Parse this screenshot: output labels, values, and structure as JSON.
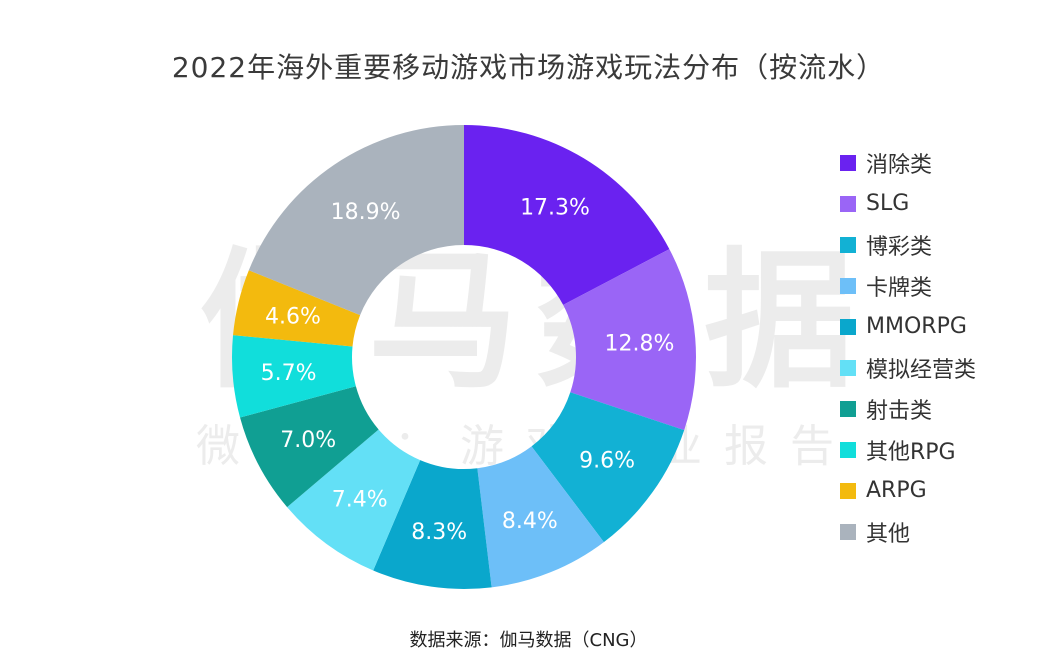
{
  "chart_data": {
    "type": "pie",
    "title": "2022年海外重要移动游戏市场游戏玩法分布（按流水）",
    "categories": [
      "消除类",
      "SLG",
      "博彩类",
      "卡牌类",
      "MMORPG",
      "模拟经营类",
      "射击类",
      "其他RPG",
      "ARPG",
      "其他"
    ],
    "values": [
      17.3,
      12.8,
      9.6,
      8.4,
      8.3,
      7.4,
      7.0,
      5.7,
      4.6,
      18.9
    ],
    "value_labels": [
      "17.3%",
      "12.8%",
      "9.6%",
      "8.4%",
      "8.3%",
      "7.4%",
      "7.0%",
      "5.7%",
      "4.6%",
      "18.9%"
    ],
    "colors": [
      "#6a22f0",
      "#9a65f6",
      "#12b1d4",
      "#6dbff8",
      "#0aa7cc",
      "#63e0f6",
      "#109f93",
      "#11dedb",
      "#f3ba0e",
      "#aab3bd"
    ],
    "style": "donut",
    "legend": "right"
  },
  "source": "数据来源：伽马数据（CNG）",
  "watermark": {
    "main": "伽马数据",
    "sub": "微信号：游戏产业报告"
  }
}
